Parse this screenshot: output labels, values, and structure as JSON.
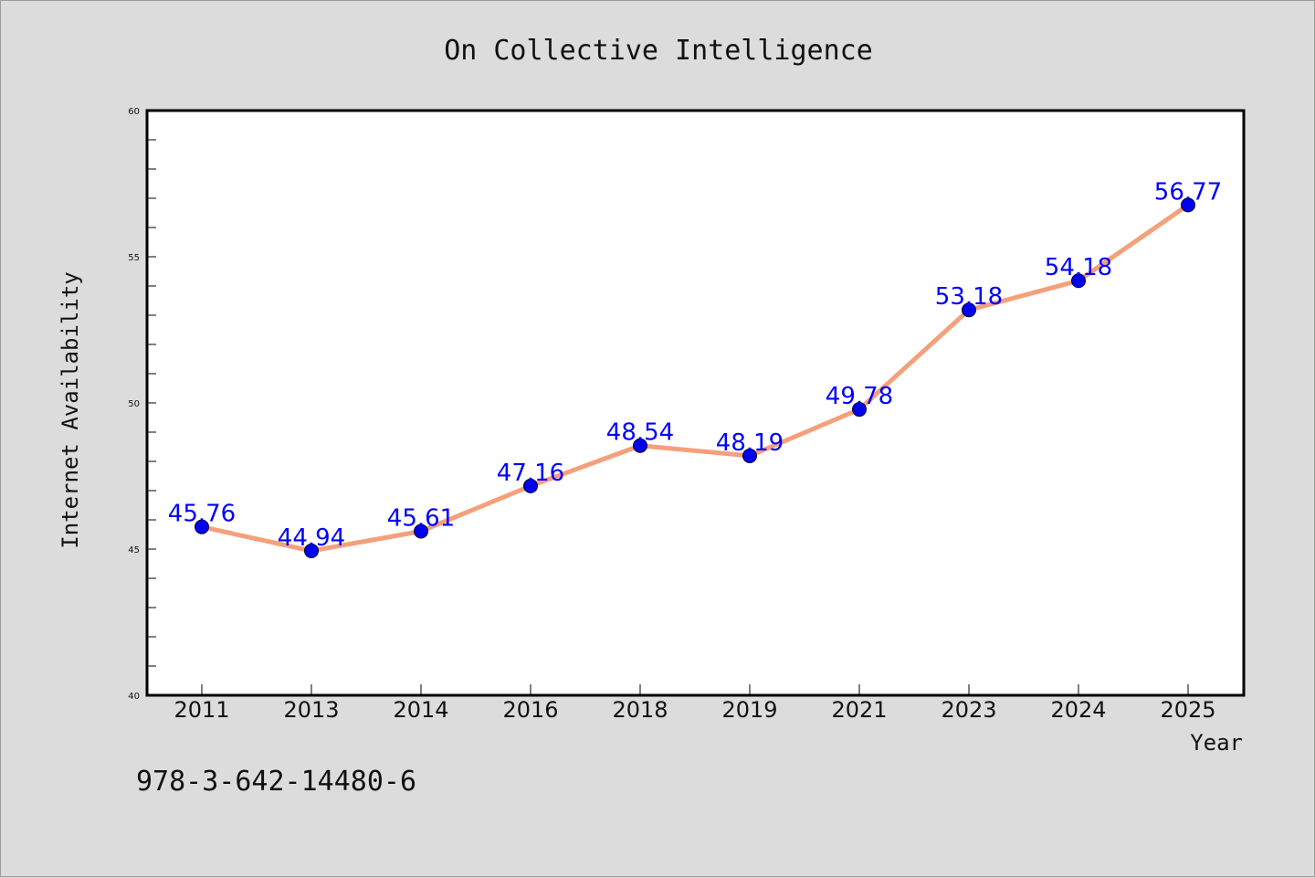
{
  "chart_data": {
    "type": "line",
    "title": "On Collective Intelligence",
    "xlabel": "Year",
    "ylabel": "Internet Availability",
    "categories": [
      "2011",
      "2013",
      "2014",
      "2016",
      "2018",
      "2019",
      "2021",
      "2023",
      "2024",
      "2025"
    ],
    "series": [
      {
        "values": [
          45.76,
          44.94,
          45.61,
          47.16,
          48.54,
          48.19,
          49.78,
          53.18,
          54.18,
          56.77
        ],
        "data_labels": [
          "45.76",
          "44.94",
          "45.61",
          "47.16",
          "48.54",
          "48.19",
          "49.78",
          "53.18",
          "54.18",
          "56.77"
        ],
        "line_color": "#f4a07a",
        "marker_color": "#0000ee"
      }
    ],
    "ylim": [
      40,
      60
    ],
    "yticks": [
      40,
      45,
      50,
      55,
      60
    ],
    "ytick_labels": [
      "40",
      "45",
      "50",
      "55",
      "60"
    ],
    "grid": false,
    "legend": "none"
  },
  "footer_text": "978-3-642-14480-6",
  "colors": {
    "background": "#dcdcdc",
    "plot_background": "#ffffff",
    "data_label": "#0000ff"
  }
}
